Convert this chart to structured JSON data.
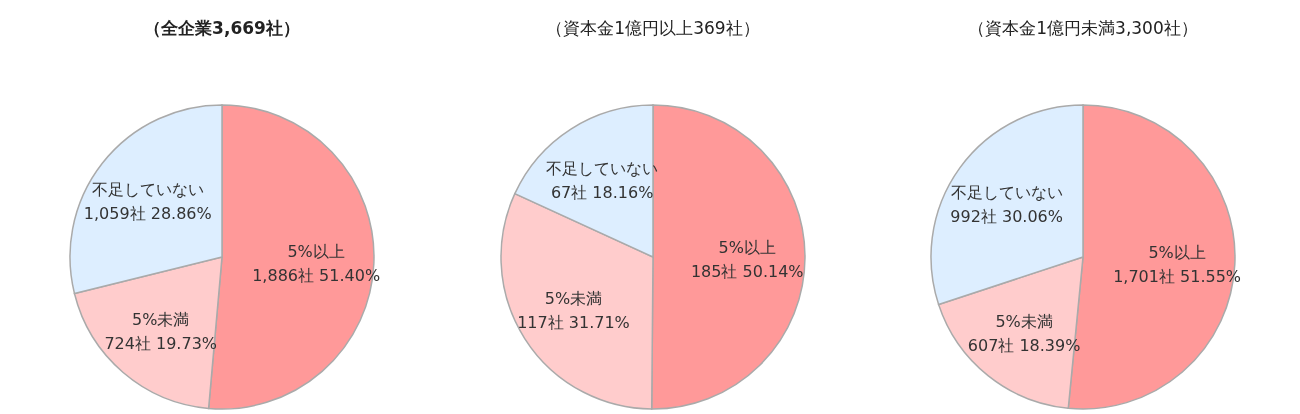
{
  "chart_data": [
    {
      "type": "pie",
      "title": "（全企業3,669社）",
      "categories": [
        "5%以上",
        "5%未満",
        "不足していない"
      ],
      "values": [
        1886,
        724,
        1059
      ],
      "colors": [
        "#ff9999",
        "#ffcccc",
        "#ddeeff"
      ],
      "value_labels": [
        "1,886社 51.40%",
        "724社 19.73%",
        "1,059社 28.86%"
      ]
    },
    {
      "type": "pie",
      "title": "（資本金1億円以上369社）",
      "categories": [
        "5%以上",
        "5%未満",
        "不足していない"
      ],
      "values": [
        185,
        117,
        67
      ],
      "colors": [
        "#ff9999",
        "#ffcccc",
        "#ddeeff"
      ],
      "value_labels": [
        "185社 50.14%",
        "117社 31.71%",
        "67社 18.16%"
      ]
    },
    {
      "type": "pie",
      "title": "（資本金1億円未満3,300社）",
      "categories": [
        "5%以上",
        "5%未満",
        "不足していない"
      ],
      "values": [
        1701,
        607,
        992
      ],
      "colors": [
        "#ff9999",
        "#ffcccc",
        "#ddeeff"
      ],
      "value_labels": [
        "1,701社 51.55%",
        "607社 18.39%",
        "992社 30.06%"
      ]
    }
  ]
}
